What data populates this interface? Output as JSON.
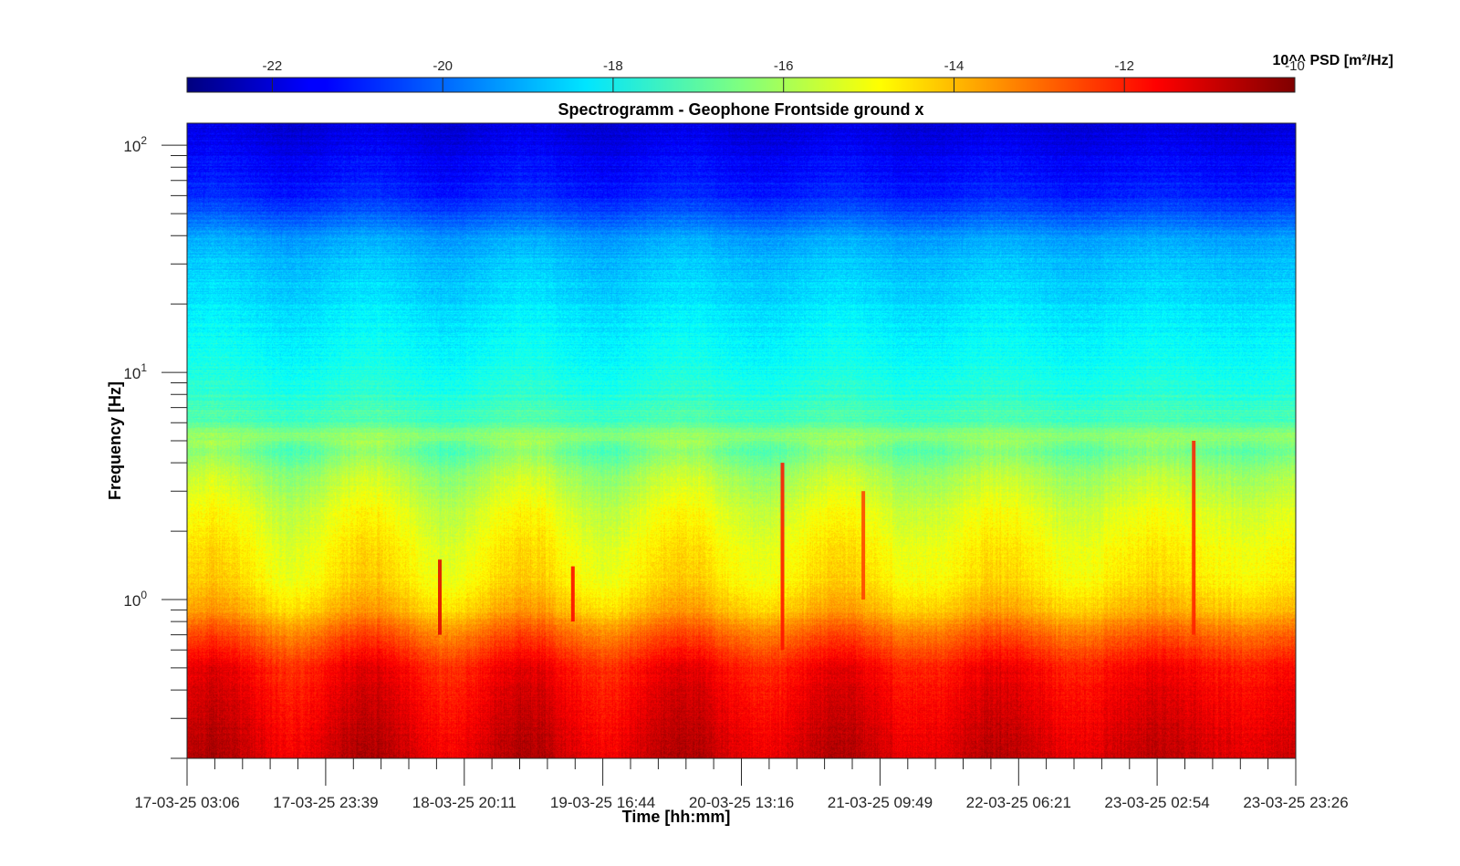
{
  "chart_data": {
    "type": "heatmap",
    "title": "Spectrogramm - Geophone Frontside ground x",
    "xlabel": "Time [hh:mm]",
    "ylabel": "Frequency [Hz]",
    "y_scale": "log",
    "ylim": [
      0.2,
      125
    ],
    "y_ticks": [
      {
        "value": 1,
        "base": "10",
        "exp": "0"
      },
      {
        "value": 10,
        "base": "10",
        "exp": "1"
      },
      {
        "value": 100,
        "base": "10",
        "exp": "2"
      }
    ],
    "x_tick_labels": [
      "17-03-25 03:06",
      "17-03-25 23:39",
      "18-03-25 20:11",
      "19-03-25 16:44",
      "20-03-25 13:16",
      "21-03-25 09:49",
      "22-03-25 06:21",
      "23-03-25 02:54",
      "23-03-25 23:26"
    ],
    "xlim": [
      "17-03-25 03:06",
      "23-03-25 23:26"
    ],
    "colorbar": {
      "label": "10^^ PSD [m²/Hz]",
      "colormap": "jet",
      "range": [
        -23,
        -10
      ],
      "ticks": [
        "-22",
        "-20",
        "-18",
        "-16",
        "-14",
        "-12",
        "-10"
      ],
      "tick_values": [
        -22,
        -20,
        -18,
        -16,
        -14,
        -12,
        -10
      ],
      "location": "top"
    },
    "psd_profile": {
      "description_units": "log10 PSD [m²/Hz] vs frequency [Hz]",
      "frequency_hz": [
        0.2,
        0.3,
        0.5,
        0.7,
        0.9,
        1.2,
        1.8,
        2.5,
        3.5,
        4.5,
        5.3,
        6,
        8,
        10,
        15,
        20,
        30,
        40,
        50,
        60,
        80,
        100,
        125
      ],
      "log10_psd": [
        -11.0,
        -11.3,
        -11.7,
        -12.8,
        -14.0,
        -14.6,
        -14.9,
        -15.3,
        -15.9,
        -16.7,
        -16.2,
        -17.1,
        -17.6,
        -17.9,
        -18.2,
        -18.5,
        -18.9,
        -19.4,
        -20.3,
        -20.9,
        -21.3,
        -21.6,
        -21.8
      ]
    },
    "events": [
      {
        "time_fraction": 0.228,
        "freq_range_hz": [
          0.7,
          1.5
        ],
        "peak_log10_psd": -11.2
      },
      {
        "time_fraction": 0.348,
        "freq_range_hz": [
          0.8,
          1.4
        ],
        "peak_log10_psd": -11.6
      },
      {
        "time_fraction": 0.537,
        "freq_range_hz": [
          0.6,
          4.0
        ],
        "peak_log10_psd": -11.8
      },
      {
        "time_fraction": 0.61,
        "freq_range_hz": [
          1.0,
          3.0
        ],
        "peak_log10_psd": -12.4
      },
      {
        "time_fraction": 0.908,
        "freq_range_hz": [
          0.7,
          5.0
        ],
        "peak_log10_psd": -12.0
      }
    ],
    "grid": false,
    "legend": "none"
  }
}
